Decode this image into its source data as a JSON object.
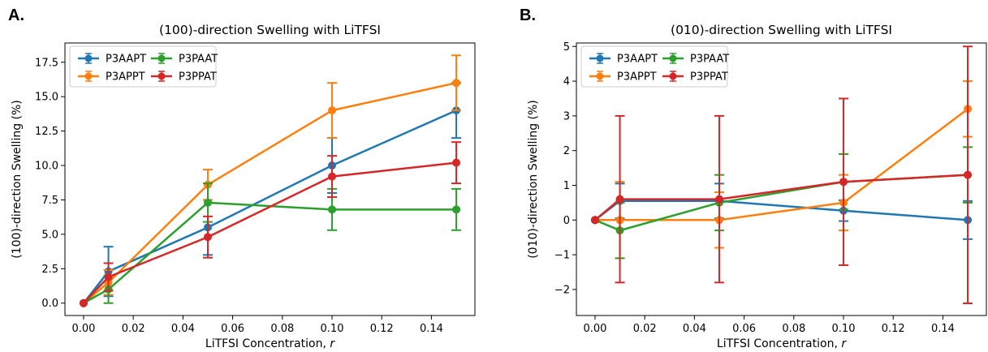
{
  "chart_data": [
    {
      "type": "line",
      "panel_label": "A.",
      "title": "(100)-direction Swelling with LiTFSI",
      "xlabel": "LiTFSI Concentration, ",
      "xlabel_var": "r",
      "ylabel": "(100)-direction Swelling (%)",
      "xlim": [
        -0.0075,
        0.1575
      ],
      "ylim": [
        -0.9,
        18.9
      ],
      "xticks": [
        0.0,
        0.02,
        0.04,
        0.06,
        0.08,
        0.1,
        0.12,
        0.14
      ],
      "xtick_labels": [
        "0.00",
        "0.02",
        "0.04",
        "0.06",
        "0.08",
        "0.10",
        "0.12",
        "0.14"
      ],
      "yticks": [
        0.0,
        2.5,
        5.0,
        7.5,
        10.0,
        12.5,
        15.0,
        17.5
      ],
      "ytick_labels": [
        "0.0",
        "2.5",
        "5.0",
        "7.5",
        "10.0",
        "12.5",
        "15.0",
        "17.5"
      ],
      "grid": false,
      "legend_position": "top-left",
      "x": [
        0.0,
        0.01,
        0.05,
        0.1,
        0.15
      ],
      "series": [
        {
          "name": "P3AAPT",
          "color": "#1f77b4",
          "values": [
            0.0,
            2.3,
            5.5,
            10.0,
            14.0
          ],
          "errors": [
            0.0,
            1.8,
            2.0,
            2.0,
            2.0
          ]
        },
        {
          "name": "P3APPT",
          "color": "#ff7f0e",
          "values": [
            0.0,
            1.5,
            8.6,
            14.0,
            16.0
          ],
          "errors": [
            0.0,
            0.9,
            1.1,
            2.0,
            2.0
          ]
        },
        {
          "name": "P3PAAT",
          "color": "#2ca02c",
          "values": [
            0.0,
            1.0,
            7.3,
            6.8,
            6.8
          ],
          "errors": [
            0.0,
            1.0,
            1.4,
            1.5,
            1.5
          ]
        },
        {
          "name": "P3PPAT",
          "color": "#d62728",
          "values": [
            0.0,
            1.9,
            4.8,
            9.2,
            10.2
          ],
          "errors": [
            0.0,
            1.0,
            1.5,
            1.5,
            1.5
          ]
        }
      ]
    },
    {
      "type": "line",
      "panel_label": "B.",
      "title": "(010)-direction Swelling with LiTFSI",
      "xlabel": "LiTFSI Concentration, ",
      "xlabel_var": "r",
      "ylabel": "(010)-direction Swelling (%)",
      "xlim": [
        -0.0075,
        0.1575
      ],
      "ylim": [
        -2.75,
        5.1
      ],
      "xticks": [
        0.0,
        0.02,
        0.04,
        0.06,
        0.08,
        0.1,
        0.12,
        0.14
      ],
      "xtick_labels": [
        "0.00",
        "0.02",
        "0.04",
        "0.06",
        "0.08",
        "0.10",
        "0.12",
        "0.14"
      ],
      "yticks": [
        -2,
        -1,
        0,
        1,
        2,
        3,
        4,
        5
      ],
      "ytick_labels": [
        "−2",
        "−1",
        "0",
        "1",
        "2",
        "3",
        "4",
        "5"
      ],
      "grid": false,
      "legend_position": "top-left",
      "x": [
        0.0,
        0.01,
        0.05,
        0.1,
        0.15
      ],
      "series": [
        {
          "name": "P3AAPT",
          "color": "#1f77b4",
          "values": [
            0.0,
            0.55,
            0.55,
            0.27,
            0.0
          ],
          "errors": [
            0.0,
            0.5,
            0.5,
            0.3,
            0.55
          ]
        },
        {
          "name": "P3APPT",
          "color": "#ff7f0e",
          "values": [
            0.0,
            0.0,
            0.0,
            0.5,
            3.2
          ],
          "errors": [
            0.0,
            1.1,
            0.8,
            0.8,
            0.8
          ]
        },
        {
          "name": "P3PAAT",
          "color": "#2ca02c",
          "values": [
            0.0,
            -0.3,
            0.5,
            1.1,
            1.3
          ],
          "errors": [
            0.0,
            0.8,
            0.8,
            0.8,
            0.8
          ]
        },
        {
          "name": "P3PPAT",
          "color": "#d62728",
          "values": [
            0.0,
            0.6,
            0.6,
            1.1,
            1.3
          ],
          "errors": [
            0.0,
            2.4,
            2.4,
            2.4,
            3.7
          ]
        }
      ]
    }
  ]
}
